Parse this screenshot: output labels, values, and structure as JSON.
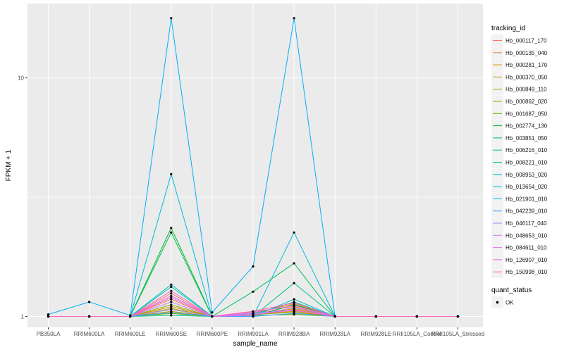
{
  "chart_data": {
    "type": "line",
    "title": "",
    "xlabel": "sample_name",
    "ylabel": "FPKM + 1",
    "y_scale": "log10",
    "ylim": [
      0.9,
      20.5
    ],
    "y_ticks": [
      1,
      10
    ],
    "y_tick_labels": [
      "1",
      "10"
    ],
    "grid": true,
    "background": "#ebebeb",
    "gridline_color": "#ffffff",
    "point_color": "#000000",
    "legend_position": "right",
    "x_tick_labels": [
      "PB350LA",
      "RRIM600LA",
      "RRIM600LE",
      "RRIM600SE",
      "RRIM600PE",
      "RRIM901LA",
      "RRIM928BA",
      "RRIM928LA",
      "RRIM928LE",
      "RRII105LA_Control",
      "RRII105LA_Stressed"
    ],
    "legend_tracking": {
      "title": "tracking_id",
      "items": [
        {
          "label": "Hb_000117_170",
          "color": "#F8766D"
        },
        {
          "label": "Hb_000135_040",
          "color": "#EC8239"
        },
        {
          "label": "Hb_000281_170",
          "color": "#DB8E00"
        },
        {
          "label": "Hb_000370_050",
          "color": "#C79800"
        },
        {
          "label": "Hb_000849_110",
          "color": "#AEA200"
        },
        {
          "label": "Hb_000862_020",
          "color": "#8FAA00"
        },
        {
          "label": "Hb_001687_050",
          "color": "#64B200"
        },
        {
          "label": "Hb_002774_130",
          "color": "#00B81B"
        },
        {
          "label": "Hb_003851_050",
          "color": "#00BD5C"
        },
        {
          "label": "Hb_006216_010",
          "color": "#00C085"
        },
        {
          "label": "Hb_008221_010",
          "color": "#00C1A7"
        },
        {
          "label": "Hb_008953_020",
          "color": "#00BFC4"
        },
        {
          "label": "Hb_013654_020",
          "color": "#00BADE"
        },
        {
          "label": "Hb_021901_010",
          "color": "#00B0F6"
        },
        {
          "label": "Hb_042239_010",
          "color": "#35A2FF"
        },
        {
          "label": "Hb_046117_040",
          "color": "#9590FF"
        },
        {
          "label": "Hb_048653_010",
          "color": "#C77CFF"
        },
        {
          "label": "Hb_084611_010",
          "color": "#E76BF3"
        },
        {
          "label": "Hb_126907_010",
          "color": "#FA62DB"
        },
        {
          "label": "Hb_150998_010",
          "color": "#FF62BC"
        }
      ]
    },
    "legend_status": {
      "title": "quant_status",
      "items": [
        {
          "label": "OK"
        }
      ]
    },
    "series": [
      {
        "name": "Hb_000117_170",
        "values": [
          1.0,
          1.0,
          1.0,
          1.25,
          1.0,
          1.04,
          1.07,
          1.0,
          1.0,
          1.0,
          1.0
        ]
      },
      {
        "name": "Hb_000135_040",
        "values": [
          1.0,
          1.0,
          1.0,
          1.18,
          1.0,
          1.05,
          1.1,
          1.0,
          1.0,
          1.0,
          1.0
        ]
      },
      {
        "name": "Hb_000281_170",
        "values": [
          1.0,
          1.0,
          1.0,
          1.1,
          1.0,
          1.03,
          1.13,
          1.0,
          1.0,
          1.0,
          1.0
        ]
      },
      {
        "name": "Hb_000370_050",
        "values": [
          1.0,
          1.0,
          1.0,
          1.05,
          1.0,
          1.02,
          1.05,
          1.0,
          1.0,
          1.0,
          1.0
        ]
      },
      {
        "name": "Hb_000849_110",
        "values": [
          1.0,
          1.0,
          1.0,
          1.08,
          1.0,
          1.01,
          1.08,
          1.0,
          1.0,
          1.0,
          1.0
        ]
      },
      {
        "name": "Hb_000862_020",
        "values": [
          1.0,
          1.0,
          1.0,
          1.12,
          1.0,
          1.02,
          1.04,
          1.0,
          1.0,
          1.0,
          1.0
        ]
      },
      {
        "name": "Hb_001687_050",
        "values": [
          1.0,
          1.0,
          1.0,
          1.03,
          1.0,
          1.01,
          1.02,
          1.0,
          1.0,
          1.0,
          1.0
        ]
      },
      {
        "name": "Hb_002774_130",
        "values": [
          1.0,
          1.0,
          1.0,
          2.35,
          1.0,
          1.0,
          1.12,
          1.0,
          1.0,
          1.0,
          1.0
        ]
      },
      {
        "name": "Hb_003851_050",
        "values": [
          1.0,
          1.0,
          1.0,
          2.25,
          1.0,
          1.27,
          1.67,
          1.0,
          1.0,
          1.0,
          1.0
        ]
      },
      {
        "name": "Hb_006216_010",
        "values": [
          1.0,
          1.0,
          1.0,
          1.01,
          1.0,
          1.0,
          1.38,
          1.0,
          1.0,
          1.0,
          1.0
        ]
      },
      {
        "name": "Hb_008221_010",
        "values": [
          1.0,
          1.0,
          1.0,
          1.36,
          1.0,
          1.02,
          1.15,
          1.0,
          1.0,
          1.0,
          1.0
        ]
      },
      {
        "name": "Hb_008953_020",
        "values": [
          1.0,
          1.0,
          1.0,
          1.33,
          1.0,
          1.0,
          1.18,
          1.0,
          1.0,
          1.0,
          1.0
        ]
      },
      {
        "name": "Hb_013654_020",
        "values": [
          1.0,
          1.0,
          1.0,
          3.95,
          1.0,
          1.0,
          2.25,
          1.0,
          1.0,
          1.0,
          1.0
        ]
      },
      {
        "name": "Hb_021901_010",
        "values": [
          1.02,
          1.15,
          1.01,
          17.8,
          1.04,
          1.62,
          17.8,
          1.0,
          1.0,
          1.0,
          1.0
        ]
      },
      {
        "name": "Hb_042239_010",
        "values": [
          1.0,
          1.0,
          1.0,
          1.04,
          1.0,
          1.0,
          1.03,
          1.0,
          1.0,
          1.0,
          1.0
        ]
      },
      {
        "name": "Hb_046117_040",
        "values": [
          1.0,
          1.0,
          1.0,
          1.07,
          1.0,
          1.03,
          1.06,
          1.0,
          1.0,
          1.0,
          1.0
        ]
      },
      {
        "name": "Hb_048653_010",
        "values": [
          1.0,
          1.0,
          1.0,
          1.15,
          1.0,
          1.01,
          1.09,
          1.0,
          1.0,
          1.0,
          1.0
        ]
      },
      {
        "name": "Hb_084611_010",
        "values": [
          1.0,
          1.0,
          1.0,
          1.2,
          1.0,
          1.04,
          1.11,
          1.0,
          1.0,
          1.0,
          1.0
        ]
      },
      {
        "name": "Hb_126907_010",
        "values": [
          1.0,
          1.0,
          1.0,
          1.22,
          1.0,
          1.02,
          1.06,
          1.0,
          1.0,
          1.0,
          1.0
        ]
      },
      {
        "name": "Hb_150998_010",
        "values": [
          1.0,
          1.0,
          1.0,
          1.28,
          1.0,
          1.05,
          1.14,
          1.0,
          1.0,
          1.0,
          1.0
        ]
      }
    ]
  }
}
